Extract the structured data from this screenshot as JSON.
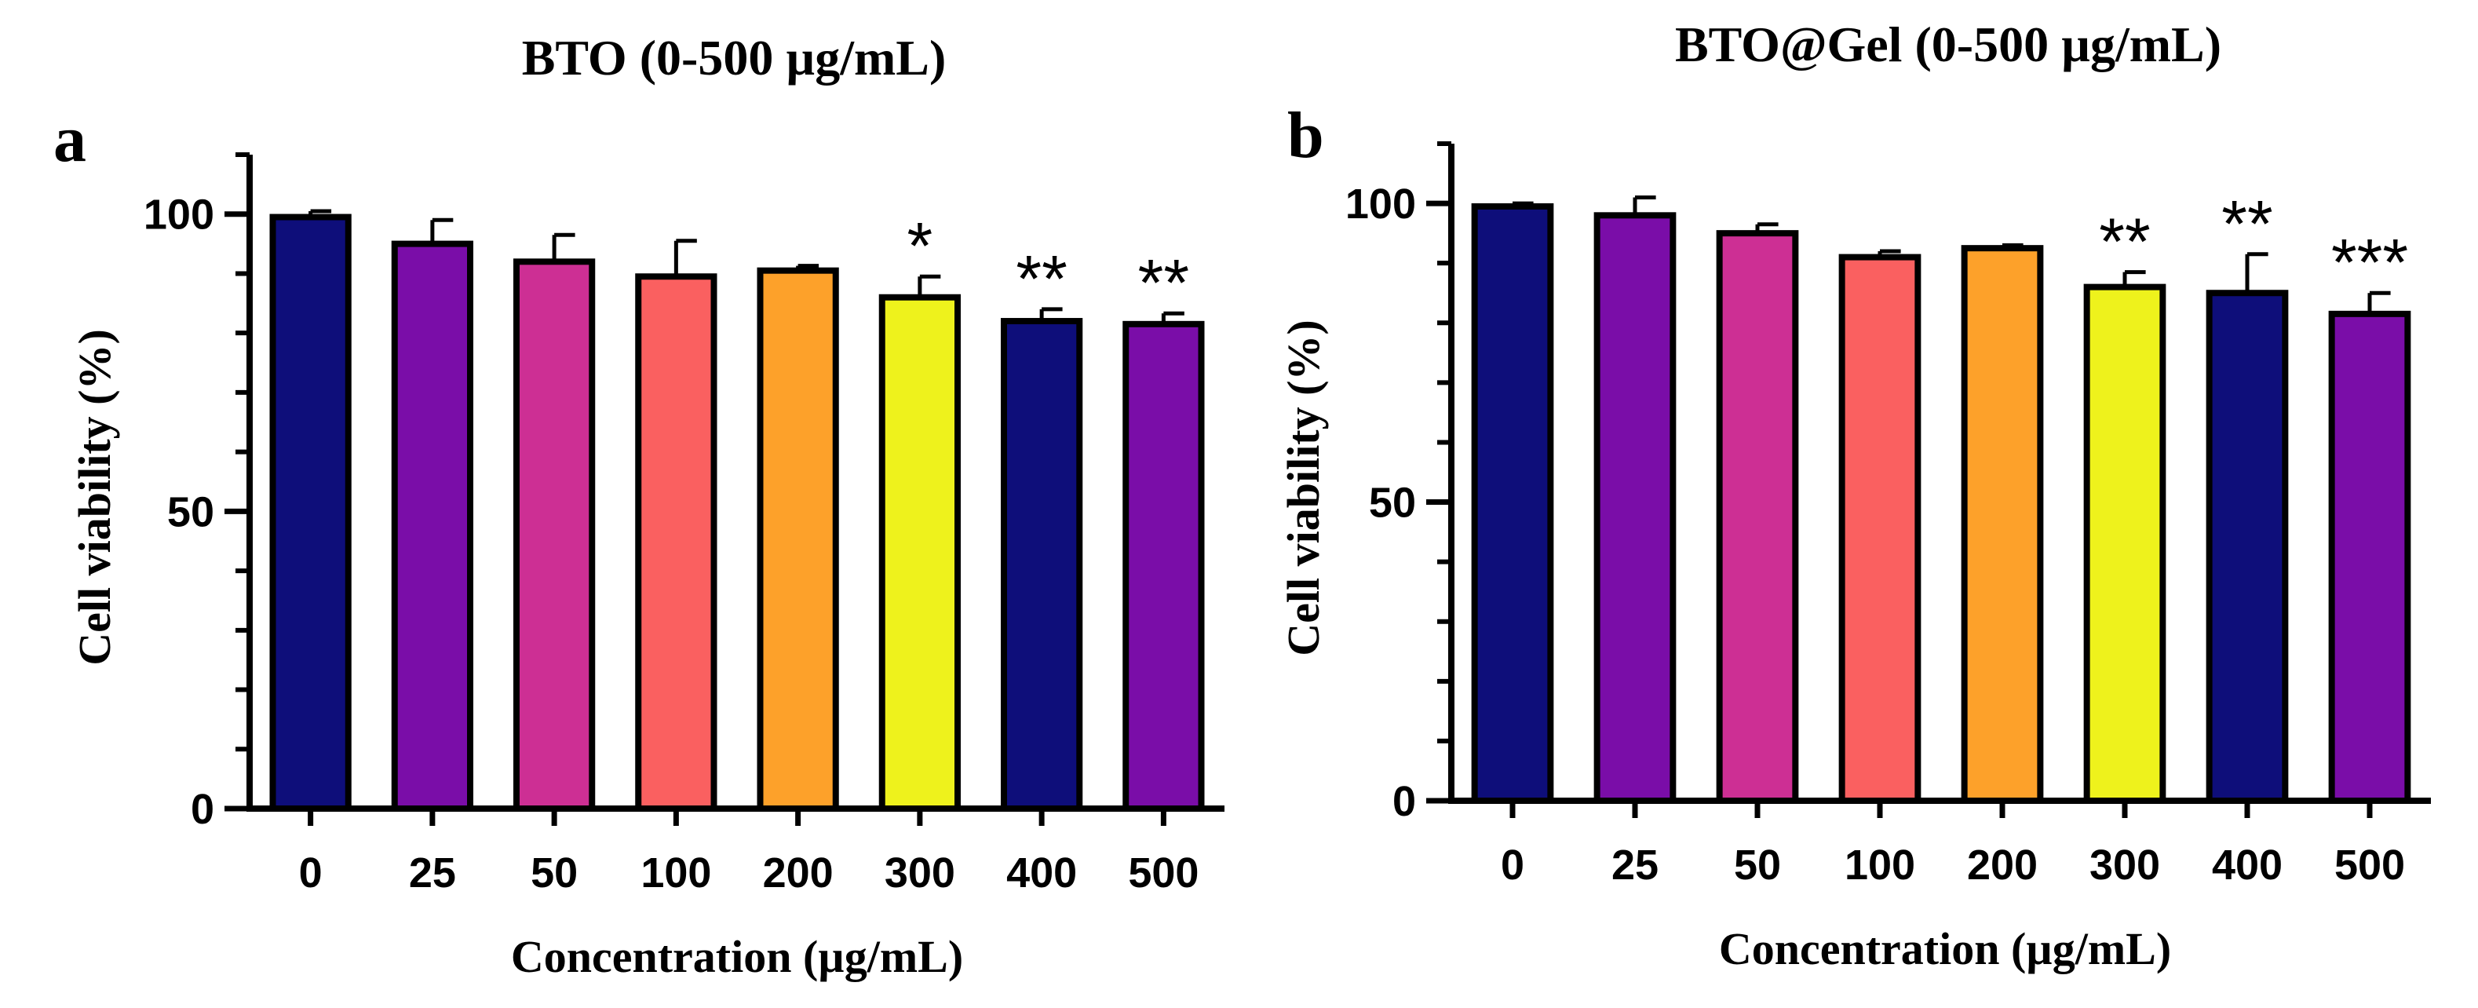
{
  "chart_data": [
    {
      "type": "bar",
      "panel_label": "a",
      "title": "BTO (0-500 µg/mL)",
      "xlabel": "Concentration  (µg/mL)",
      "ylabel": "Cell viability  (%)",
      "categories": [
        "0",
        "25",
        "50",
        "100",
        "200",
        "300",
        "400",
        "500"
      ],
      "values": [
        99.5,
        95,
        92,
        89.5,
        90.5,
        86,
        82,
        81.5
      ],
      "errors": [
        1,
        4,
        4.5,
        6,
        0.8,
        3.5,
        2,
        1.8
      ],
      "significance": [
        "",
        "",
        "",
        "",
        "",
        "*",
        "**",
        "**"
      ],
      "colors": [
        "#0e0e7a",
        "#7a0da8",
        "#cd2f94",
        "#fa6060",
        "#fda12a",
        "#eef21c",
        "#0e0e7a",
        "#7a0da8"
      ],
      "ylim": [
        0,
        110
      ],
      "yticks": [
        0,
        50,
        100
      ],
      "grid": false,
      "legend": "none"
    },
    {
      "type": "bar",
      "panel_label": "b",
      "title": "BTO@Gel (0-500 µg/mL)",
      "xlabel": "Concentration  (µg/mL)",
      "ylabel": "Cell viability  (%)",
      "categories": [
        "0",
        "25",
        "50",
        "100",
        "200",
        "300",
        "400",
        "500"
      ],
      "values": [
        99.5,
        98,
        95,
        91,
        92.5,
        86,
        85,
        81.5
      ],
      "errors": [
        0.5,
        3,
        1.5,
        1,
        0.5,
        2.5,
        6.5,
        3.5
      ],
      "significance": [
        "",
        "",
        "",
        "",
        "",
        "**",
        "**",
        "***"
      ],
      "colors": [
        "#0e0e7a",
        "#7a0da8",
        "#cd2f94",
        "#fa6060",
        "#fda12a",
        "#eef21c",
        "#0e0e7a",
        "#7a0da8"
      ],
      "ylim": [
        0,
        110
      ],
      "yticks": [
        0,
        50,
        100
      ],
      "grid": false,
      "legend": "none"
    }
  ]
}
